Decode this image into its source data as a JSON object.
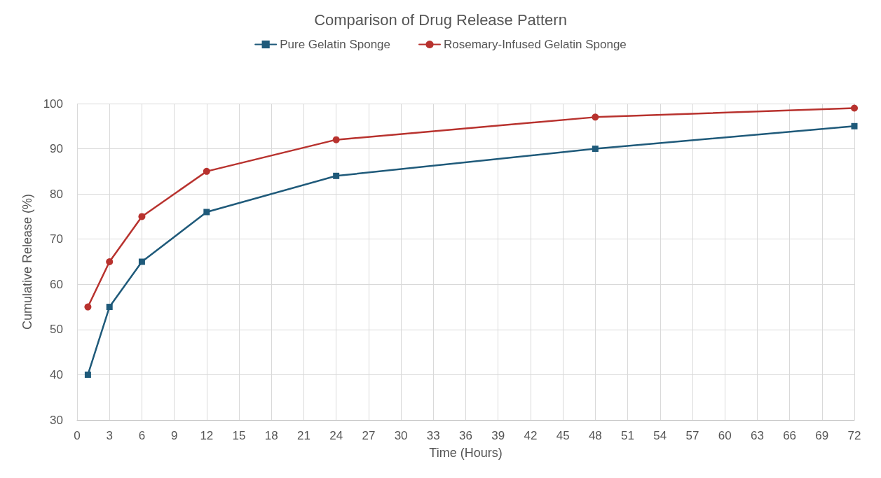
{
  "chart_data": {
    "type": "line",
    "title": "Comparison of Drug Release Pattern",
    "xlabel": "Time (Hours)",
    "ylabel": "Cumulative Release (%)",
    "x": [
      1,
      3,
      6,
      12,
      24,
      48,
      72
    ],
    "series": [
      {
        "name": "Pure Gelatin Sponge",
        "color": "#1f5a7a",
        "marker": "square",
        "values": [
          40,
          55,
          65,
          76,
          84,
          90,
          95
        ]
      },
      {
        "name": "Rosemary-Infused Gelatin Sponge",
        "color": "#b8322e",
        "marker": "circle",
        "values": [
          55,
          65,
          75,
          85,
          92,
          97,
          99
        ]
      }
    ],
    "xlim": [
      0,
      72
    ],
    "xticks": [
      0,
      3,
      6,
      9,
      12,
      15,
      18,
      21,
      24,
      27,
      30,
      33,
      36,
      39,
      42,
      45,
      48,
      51,
      54,
      57,
      60,
      63,
      66,
      69,
      72
    ],
    "ylim": [
      30,
      100
    ],
    "yticks": [
      30,
      40,
      50,
      60,
      70,
      80,
      90,
      100
    ],
    "grid": true,
    "legend": "top",
    "line_style": "solid"
  }
}
